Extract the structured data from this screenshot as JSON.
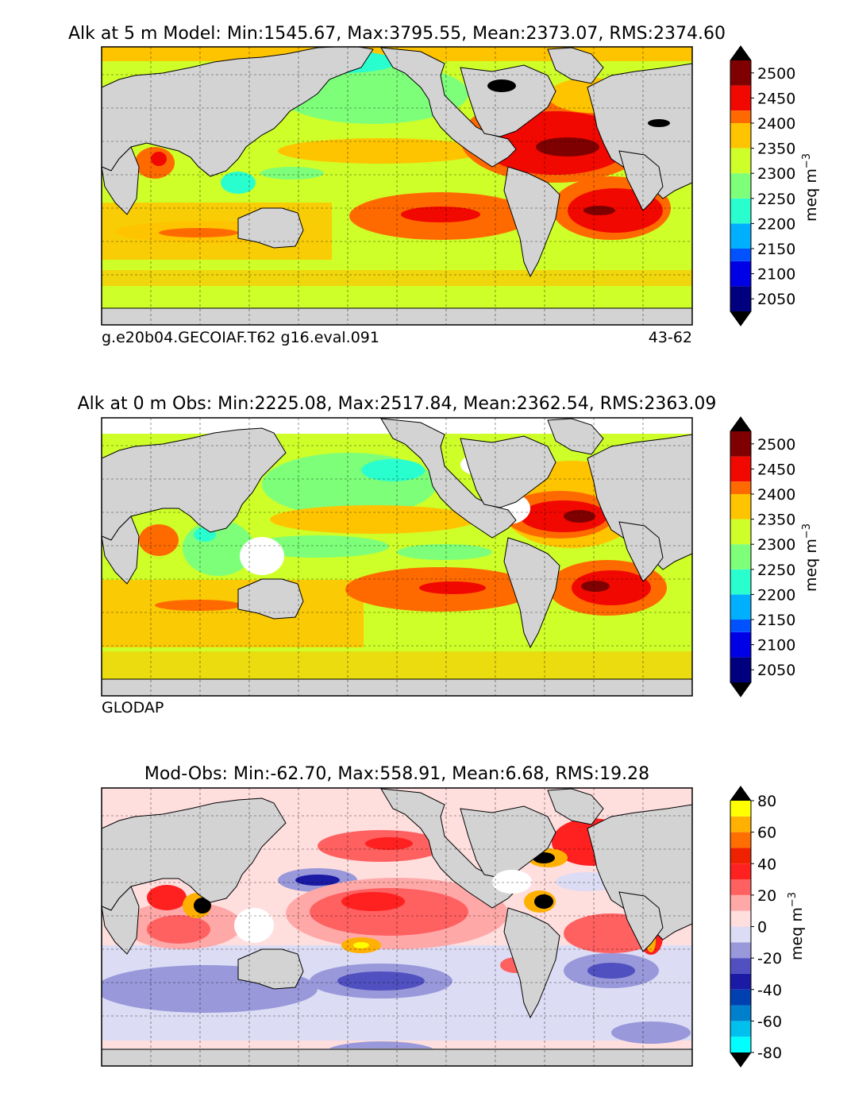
{
  "chart_data": [
    {
      "type": "heatmap",
      "title": "Alk at 5 m Model: Min:1545.67, Max:3795.55, Mean:2373.07, RMS:2374.60",
      "footer_left": "g.e20b04.GECOIAF.T62 g16.eval.091",
      "footer_right": "43-62",
      "colorbar": {
        "label": "meq m",
        "exponent": "−3",
        "ticks": [
          "2050",
          "2100",
          "2150",
          "2200",
          "2250",
          "2300",
          "2350",
          "2400",
          "2450",
          "2500"
        ],
        "levels": [
          2025,
          2050,
          2075,
          2100,
          2125,
          2150,
          2175,
          2200,
          2225,
          2250,
          2275,
          2300,
          2325,
          2350,
          2375,
          2400,
          2425,
          2450,
          2475,
          2500,
          2525
        ],
        "colors": [
          "#00007f",
          "#0000e6",
          "#0052ff",
          "#00b0ff",
          "#29ffce",
          "#7dff7a",
          "#ceff29",
          "#ffc400",
          "#ff6a00",
          "#f10800",
          "#7f0000"
        ],
        "extend": "both"
      }
    },
    {
      "type": "heatmap",
      "title": "Alk at 0 m Obs: Min:2225.08, Max:2517.84, Mean:2362.54, RMS:2363.09",
      "footer_left": "GLODAP",
      "colorbar": {
        "label": "meq m",
        "exponent": "−3",
        "ticks": [
          "2050",
          "2100",
          "2150",
          "2200",
          "2250",
          "2300",
          "2350",
          "2400",
          "2450",
          "2500"
        ],
        "levels": [
          2025,
          2050,
          2075,
          2100,
          2125,
          2150,
          2175,
          2200,
          2225,
          2250,
          2275,
          2300,
          2325,
          2350,
          2375,
          2400,
          2425,
          2450,
          2475,
          2500,
          2525
        ],
        "colors": [
          "#00007f",
          "#0000e6",
          "#0052ff",
          "#00b0ff",
          "#29ffce",
          "#7dff7a",
          "#ceff29",
          "#ffc400",
          "#ff6a00",
          "#f10800",
          "#7f0000"
        ],
        "extend": "both"
      }
    },
    {
      "type": "heatmap",
      "title": "Mod-Obs: Min:-62.70, Max:558.91, Mean:6.68, RMS:19.28",
      "colorbar": {
        "label": "meq m",
        "exponent": "−3",
        "ticks": [
          "-80",
          "-60",
          "-40",
          "-20",
          "0",
          "20",
          "40",
          "60",
          "80"
        ],
        "levels": [
          -80,
          -70,
          -60,
          -50,
          -40,
          -30,
          -20,
          -10,
          0,
          10,
          20,
          30,
          40,
          50,
          60,
          70,
          80
        ],
        "colors": [
          "#00ffff",
          "#00c0ee",
          "#0080cc",
          "#0040b0",
          "#1a1aa5",
          "#5050c0",
          "#9898da",
          "#dcdcf4",
          "#ffdede",
          "#ffa8a8",
          "#ff6060",
          "#ff2020",
          "#ee2200",
          "#ff6e00",
          "#ffb000",
          "#ffff00"
        ],
        "extend": "both"
      }
    }
  ]
}
